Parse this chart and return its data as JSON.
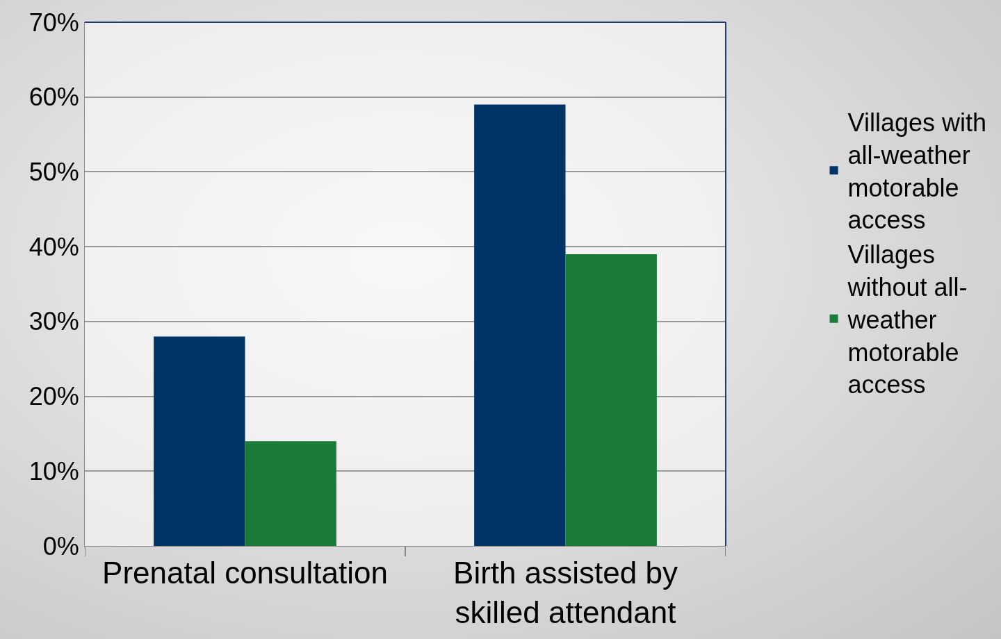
{
  "chart_data": {
    "type": "bar",
    "categories": [
      "Prenatal consultation",
      "Birth assisted by skilled attendant"
    ],
    "series": [
      {
        "name": "Villages with all-weather motorable access",
        "color": "#003366",
        "values": [
          28,
          59
        ]
      },
      {
        "name": "Villages without all-weather motorable access",
        "color": "#1a7a38",
        "values": [
          14,
          39
        ]
      }
    ],
    "ylim": [
      0,
      70
    ],
    "yticks": [
      {
        "value": 0,
        "label": "0%"
      },
      {
        "value": 10,
        "label": "10%"
      },
      {
        "value": 20,
        "label": "20%"
      },
      {
        "value": 30,
        "label": "30%"
      },
      {
        "value": 40,
        "label": "40%"
      },
      {
        "value": 50,
        "label": "50%"
      },
      {
        "value": 60,
        "label": "60%"
      },
      {
        "value": 70,
        "label": "70%"
      }
    ],
    "grid": "y",
    "legend": "right"
  }
}
